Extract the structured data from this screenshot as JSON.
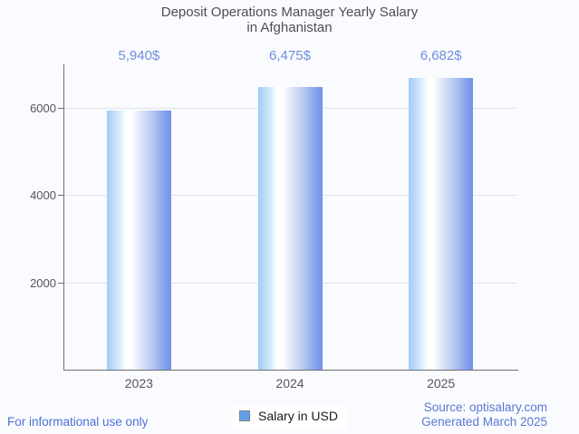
{
  "title": {
    "line1": "Deposit Operations Manager Yearly Salary",
    "line2": "in Afghanistan"
  },
  "chart_data": {
    "type": "bar",
    "categories": [
      "2023",
      "2024",
      "2025"
    ],
    "series": [
      {
        "name": "Salary in USD",
        "values": [
          5940,
          6475,
          6682
        ]
      }
    ],
    "value_labels": [
      "5,940$",
      "6,475$",
      "6,682$"
    ],
    "title": "Deposit Operations Manager Yearly Salary in Afghanistan",
    "xlabel": "",
    "ylabel": "",
    "ylim": [
      0,
      7000
    ],
    "yticks": [
      2000,
      4000,
      6000
    ],
    "grid": true,
    "legend_position": "bottom",
    "bar_color_gradient": [
      "#9fccf5",
      "#ffffff",
      "#7495e6"
    ],
    "annotation_color": "#6d8fdb"
  },
  "legend": {
    "label": "Salary in USD",
    "swatch_color": "#5f9fe8"
  },
  "footer": {
    "left": "For informational use only",
    "source": "Source: optisalary.com",
    "generated": "Generated March 2025"
  },
  "colors": {
    "background": "#fafbfe",
    "title_text": "#4e4e56",
    "axis_text": "#55555c",
    "axis_line": "#6f6f78",
    "gridline": "#e3e4e9",
    "footer_left_text": "#4a72d6",
    "footer_right_text": "#5b78cf"
  }
}
